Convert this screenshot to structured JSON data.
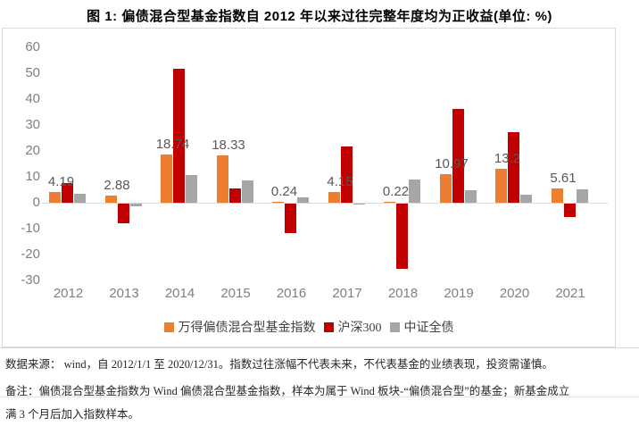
{
  "title": "图 1: 偏债混合型基金指数自 2012 年以来过往完整年度均为正收益(单位: %)",
  "chart_data": {
    "type": "bar",
    "categories": [
      "2012",
      "2013",
      "2014",
      "2015",
      "2016",
      "2017",
      "2018",
      "2019",
      "2020",
      "2021"
    ],
    "series": [
      {
        "name": "万得偏债混合型基金指数",
        "color": "#ED7D31",
        "values": [
          4.19,
          2.88,
          18.74,
          18.33,
          0.24,
          4.15,
          0.22,
          10.97,
          13.2,
          5.61
        ],
        "data_labels": [
          "4.19",
          "2.88",
          "18.74",
          "18.33",
          "0.24",
          "4.15",
          "0.22",
          "10.97",
          "13.2",
          "5.61"
        ]
      },
      {
        "name": "沪深300",
        "color": "#C00000",
        "values": [
          7.55,
          -7.65,
          51.66,
          5.58,
          -11.28,
          21.78,
          -25.31,
          36.07,
          27.21,
          -5.2
        ],
        "data_labels": []
      },
      {
        "name": "中证全债",
        "color": "#A6A6A6",
        "values": [
          3.52,
          -1.1,
          10.82,
          8.74,
          2.0,
          -0.34,
          8.85,
          4.96,
          2.97,
          5.3
        ],
        "data_labels": []
      }
    ],
    "title": "图 1: 偏债混合型基金指数自 2012 年以来过往完整年度均为正收益(单位: %)",
    "xlabel": "",
    "ylabel": "",
    "ylim": [
      -30,
      60
    ],
    "yticks": [
      60,
      50,
      40,
      30,
      20,
      10,
      0,
      -10,
      -20,
      -30
    ],
    "grid": false,
    "legend_position": "bottom",
    "axis_color": "#808080",
    "frame_color": "#D9D9D9"
  },
  "footer": {
    "line1": "数据来源：  wind，自 2012/1/1 至 2020/12/31。指数过往涨幅不代表未来，不代表基金的业绩表现，投资需谨慎。",
    "line2": "备注：偏债混合型基金指数为 Wind 偏债混合型基金指数，样本为属于 Wind 板块-“偏债混合型”的基金；新基金成立",
    "line3": "满 3 个月后加入指数样本。"
  }
}
